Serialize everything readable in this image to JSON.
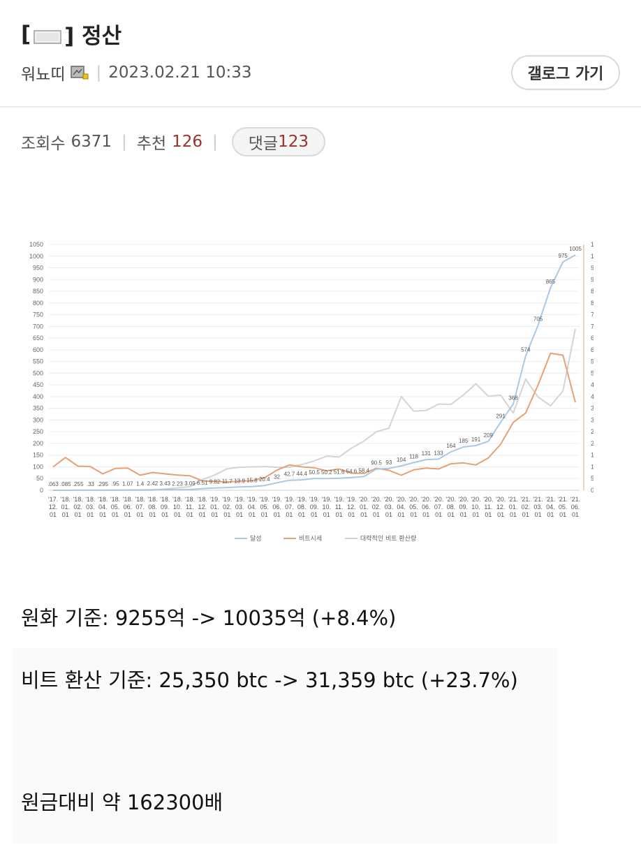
{
  "post": {
    "title_open": "[",
    "title_close": "] 정산",
    "author": "워뇨띠",
    "datetime": "2023.02.21 10:33",
    "gallery_button": "갤로그 가기",
    "views_label": "조회수",
    "views": "6371",
    "recommend_label": "추천",
    "recommend": "126",
    "comment_label": "댓글",
    "comments": "123"
  },
  "body_lines": {
    "line1": "원화 기준: 9255억 -> 10035억 (+8.4%)",
    "line2": "비트 환산 기준: 25,350 btc -> 31,359 btc (+23.7%)",
    "line3": "원금대비 약 162300배"
  },
  "chart_data": {
    "type": "line",
    "x": [
      "'17.12.01",
      "'18.01.01",
      "'18.02.01",
      "'18.03.01",
      "'18.04.01",
      "'18.05.01",
      "'18.06.01",
      "'18.07.01",
      "'18.08.01",
      "'18.09.01",
      "'18.10.01",
      "'18.11.01",
      "'18.12.01",
      "'19.01.01",
      "'19.02.01",
      "'19.03.01",
      "'19.04.01",
      "'19.05.01",
      "'19.06.01",
      "'19.07.01",
      "'19.08.01",
      "'19.09.01",
      "'19.10.01",
      "'19.11.01",
      "'19.12.01",
      "'20.01.01",
      "'20.02.01",
      "'20.03.01",
      "'20.04.01",
      "'20.05.01",
      "'20.06.01",
      "'20.07.01",
      "'20.08.01",
      "'20.09.01",
      "'20.10.01",
      "'20.11.01",
      "'20.12.01",
      "'21.01.01",
      "'21.02.01",
      "'21.03.01",
      "'21.04.01",
      "'21.05.01",
      "'21.06.01"
    ],
    "series": [
      {
        "name": "달성",
        "axis": "left",
        "color": "#a8c8e8",
        "values": [
          0.063,
          0.085,
          0.255,
          0.33,
          0.295,
          0.95,
          1.07,
          1.4,
          2.42,
          3.43,
          2.23,
          3.09,
          6.51,
          9.82,
          11.7,
          13.9,
          15.8,
          20.4,
          32,
          42.7,
          44.4,
          50.5,
          50.2,
          51.6,
          54.6,
          58.4,
          90.5,
          93,
          104,
          118,
          131,
          133,
          164,
          185,
          191,
          209,
          291,
          368,
          574,
          705,
          865,
          975,
          1005
        ]
      },
      {
        "name": "비트시세",
        "axis": "right",
        "color": "#e8a070",
        "values": [
          10000,
          14000,
          10300,
          10100,
          7000,
          9300,
          9500,
          6400,
          7600,
          7000,
          6500,
          6200,
          4000,
          3800,
          3500,
          3900,
          4100,
          5300,
          8600,
          10800,
          10000,
          9600,
          8300,
          9100,
          7300,
          7200,
          9400,
          8500,
          6400,
          8700,
          9500,
          9100,
          11300,
          11700,
          10800,
          13800,
          19700,
          29000,
          33000,
          45000,
          58500,
          57700,
          37500
        ]
      },
      {
        "name": "대략적인 비트 환산량",
        "axis": "right",
        "color": "#d4d4d4",
        "values": [
          0,
          0,
          0,
          0,
          0,
          0,
          0,
          0,
          0,
          500,
          1000,
          1500,
          4500,
          6500,
          9200,
          9800,
          10000,
          10100,
          9800,
          9800,
          11000,
          12500,
          14600,
          14200,
          18000,
          21000,
          25000,
          26500,
          40000,
          33800,
          34100,
          36800,
          36700,
          40700,
          45500,
          40200,
          40600,
          33000,
          47500,
          39800,
          36100,
          42400,
          69000
        ]
      }
    ],
    "data_labels_series": "달성",
    "data_labels": [
      ".063",
      ".085",
      ".255",
      ".33",
      ".295",
      ".95",
      "1.07",
      "1.4",
      "2.42",
      "3.43",
      "2.23",
      "3.09",
      "6.51",
      "9.82",
      "11.7",
      "13.9",
      "15.8",
      "20.4",
      "32",
      "42.7",
      "44.4",
      "50.5",
      "50.2",
      "51.6",
      "54.6",
      "58.4",
      "90.5",
      "93",
      "104",
      "118",
      "131",
      "133",
      "164",
      "185",
      "191",
      "209",
      "291",
      "368",
      "574",
      "705",
      "865",
      "975",
      "1005"
    ],
    "y_left": {
      "min": 0,
      "max": 1050,
      "step": 50
    },
    "y_right": {
      "min": 0,
      "max": 105000,
      "step": 5000
    },
    "grid": true,
    "legend_position": "bottom"
  }
}
